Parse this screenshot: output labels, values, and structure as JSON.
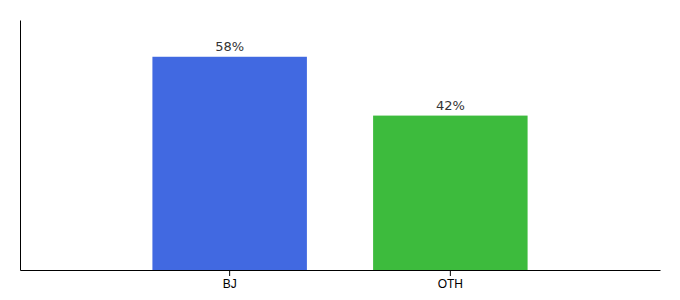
{
  "chart_data": {
    "type": "bar",
    "categories": [
      "BJ",
      "OTH"
    ],
    "values": [
      58,
      42
    ],
    "value_labels": [
      "58%",
      "42%"
    ],
    "colors": [
      "#4169e1",
      "#3dbb3d"
    ],
    "ylim": [
      0,
      68
    ],
    "data_labels": true,
    "tick_labels": "x"
  }
}
